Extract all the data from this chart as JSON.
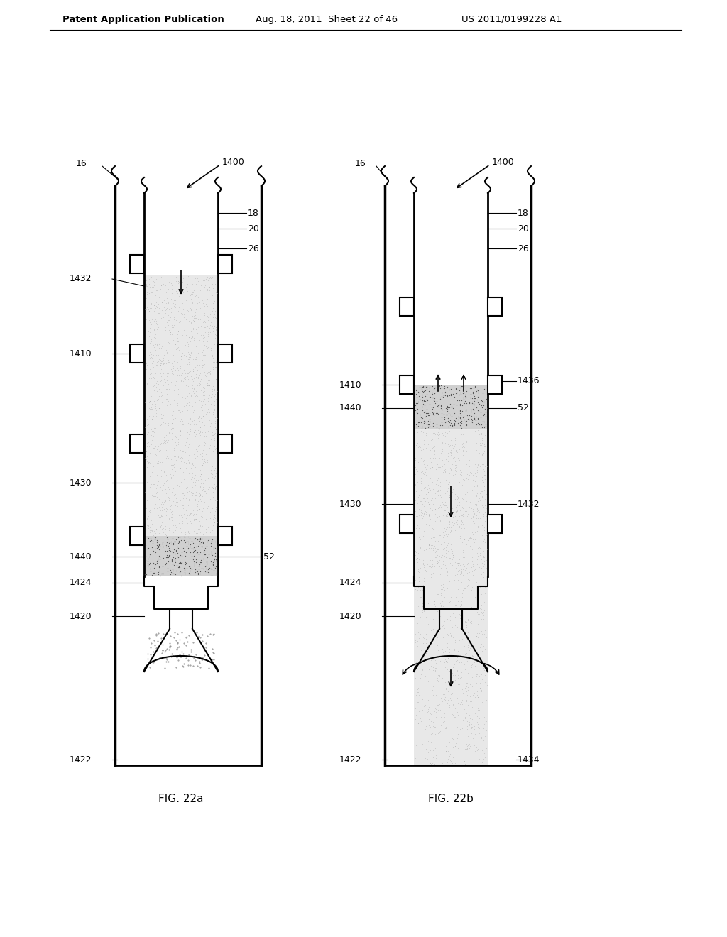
{
  "title_left": "Patent Application Publication",
  "title_mid": "Aug. 18, 2011  Sheet 22 of 46",
  "title_right": "US 2011/0199228 A1",
  "fig_label_a": "FIG. 22a",
  "fig_label_b": "FIG. 22b",
  "bg_color": "#ffffff",
  "line_color": "#000000"
}
